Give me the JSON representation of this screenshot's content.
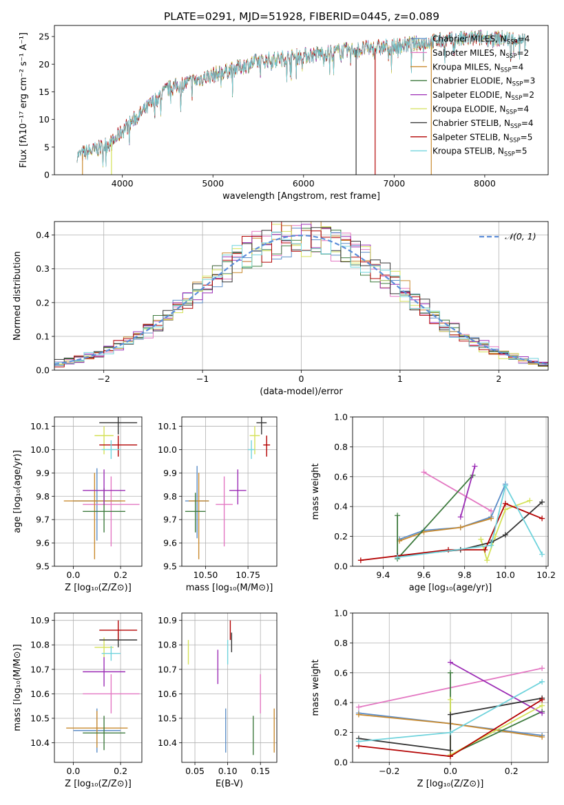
{
  "figure_title": "PLATE=0291, MJD=51928, FIBERID=0445, z=0.089",
  "models": [
    {
      "name": "Chabrier MILES, N",
      "nssp": "=4",
      "color": "#5b8cc7"
    },
    {
      "name": "Salpeter MILES, N",
      "nssp": "=2",
      "color": "#e377c2"
    },
    {
      "name": "Kroupa MILES, N",
      "nssp": "=4",
      "color": "#c98a2e"
    },
    {
      "name": "Chabrier ELODIE, N",
      "nssp": "=3",
      "color": "#3d7a3d"
    },
    {
      "name": "Salpeter ELODIE, N",
      "nssp": "=2",
      "color": "#9b2bb5"
    },
    {
      "name": "Kroupa ELODIE, N",
      "nssp": "=4",
      "color": "#d4e157"
    },
    {
      "name": "Chabrier STELIB, N",
      "nssp": "=4",
      "color": "#333333"
    },
    {
      "name": "Salpeter STELIB, N",
      "nssp": "=5",
      "color": "#b30000"
    },
    {
      "name": "Kroupa STELIB, N",
      "nssp": "=5",
      "color": "#6fd3dc"
    }
  ],
  "nssp_sub": "SSP",
  "chart_data": [
    {
      "id": "spectrum",
      "type": "line",
      "xlabel": "wavelength [Angstrom, rest frame]",
      "ylabel": "Flux [fλ10⁻¹⁷ erg cm⁻² s⁻¹ A⁻¹]",
      "xlim": [
        3250,
        8700
      ],
      "ylim": [
        0,
        27
      ],
      "xticks": [
        4000,
        5000,
        6000,
        7000,
        8000
      ],
      "yticks": [
        0,
        5,
        10,
        15,
        20,
        25
      ],
      "continuum_x": [
        3500,
        3700,
        3900,
        4000,
        4200,
        4500,
        5000,
        5500,
        6000,
        6500,
        7000,
        7500,
        8000,
        8300
      ],
      "continuum_y": [
        3.5,
        4.5,
        6,
        8,
        11,
        15.5,
        18,
        20.5,
        21.5,
        22.5,
        23.2,
        24.2,
        24.8,
        24.5
      ],
      "grid": false,
      "legend": "right"
    },
    {
      "id": "residuals",
      "type": "line",
      "xlabel": "(data-model)/error",
      "ylabel": "Normed distribution",
      "xlim": [
        -2.5,
        2.5
      ],
      "ylim": [
        0,
        0.44
      ],
      "xticks": [
        -2,
        -1,
        0,
        1,
        2
      ],
      "yticks": [
        0,
        0.1,
        0.2,
        0.3,
        0.4
      ],
      "gauss_label": "𝒩(0, 1)",
      "grid": true
    },
    {
      "id": "age_vs_Z",
      "type": "scatter",
      "xlabel": "Z [log₁₀(Z/Z⊙)]",
      "ylabel": "age  [log₁₀(age/yr)]",
      "xlim": [
        -0.08,
        0.29
      ],
      "ylim": [
        9.5,
        10.14
      ],
      "xticks": [
        0,
        0.2
      ],
      "xticklabels": [
        "0.0",
        "0.2"
      ],
      "yticks": [
        9.5,
        9.6,
        9.7,
        9.8,
        9.9,
        10.0,
        10.1
      ],
      "points": [
        {
          "x": 0.1,
          "y": 9.78,
          "ex": 0.1,
          "ey": [
            0.17,
            0.14
          ],
          "m": 0
        },
        {
          "x": 0.16,
          "y": 9.765,
          "ex": 0.12,
          "ey": [
            0.18,
            0.12
          ],
          "m": 1
        },
        {
          "x": 0.09,
          "y": 9.78,
          "ex": 0.13,
          "ey": [
            0.25,
            0.12
          ],
          "m": 2
        },
        {
          "x": 0.13,
          "y": 9.735,
          "ex": 0.09,
          "ey": [
            0.09,
            0.1
          ],
          "m": 3
        },
        {
          "x": 0.13,
          "y": 9.825,
          "ex": 0.09,
          "ey": [
            0.06,
            0.09
          ],
          "m": 4
        },
        {
          "x": 0.13,
          "y": 10.06,
          "ex": 0.04,
          "ey": [
            0.08,
            0.04
          ],
          "m": 5
        },
        {
          "x": 0.19,
          "y": 10.115,
          "ex": 0.08,
          "ey": [
            0.05,
            0.03
          ],
          "m": 6
        },
        {
          "x": 0.19,
          "y": 10.02,
          "ex": 0.08,
          "ey": [
            0.05,
            0.04
          ],
          "m": 7
        },
        {
          "x": 0.16,
          "y": 10.0,
          "ex": 0.04,
          "ey": [
            0.04,
            0.04
          ],
          "m": 8
        }
      ]
    },
    {
      "id": "age_vs_mass",
      "type": "scatter",
      "xlabel": "mass [log₁₀(M/M⊙)]",
      "ylabel": "",
      "xlim": [
        10.36,
        10.92
      ],
      "ylim": [
        9.5,
        10.14
      ],
      "xticks": [
        10.5,
        10.75
      ],
      "xticklabels": [
        "10.50",
        "10.75"
      ],
      "yticks": [
        9.5,
        9.6,
        9.7,
        9.8,
        9.9,
        10.0,
        10.1
      ],
      "points": [
        {
          "x": 10.45,
          "y": 9.78,
          "ex": 0.07,
          "ey": [
            0.16,
            0.15
          ],
          "m": 0
        },
        {
          "x": 10.61,
          "y": 9.765,
          "ex": 0.05,
          "ey": [
            0.18,
            0.12
          ],
          "m": 1
        },
        {
          "x": 10.46,
          "y": 9.78,
          "ex": 0.06,
          "ey": [
            0.25,
            0.12
          ],
          "m": 2
        },
        {
          "x": 10.44,
          "y": 9.735,
          "ex": 0.06,
          "ey": [
            0.09,
            0.08
          ],
          "m": 3
        },
        {
          "x": 10.69,
          "y": 9.825,
          "ex": 0.05,
          "ey": [
            0.06,
            0.09
          ],
          "m": 4
        },
        {
          "x": 10.79,
          "y": 10.06,
          "ex": 0.03,
          "ey": [
            0.08,
            0.04
          ],
          "m": 5
        },
        {
          "x": 10.83,
          "y": 10.115,
          "ex": 0.03,
          "ey": [
            0.05,
            0.03
          ],
          "m": 6
        },
        {
          "x": 10.86,
          "y": 10.02,
          "ex": 0.02,
          "ey": [
            0.05,
            0.04
          ],
          "m": 7
        },
        {
          "x": 10.77,
          "y": 10.0,
          "ex": 0.02,
          "ey": [
            0.04,
            0.04
          ],
          "m": 8
        }
      ]
    },
    {
      "id": "mw_vs_age",
      "type": "line",
      "xlabel": "age  [log₁₀(age/yr)]",
      "ylabel": "mass weight",
      "xlim": [
        9.25,
        10.21
      ],
      "ylim": [
        0,
        1.0
      ],
      "xticks": [
        9.4,
        9.6,
        9.8,
        10.0,
        10.2
      ],
      "xticklabels": [
        "9.4",
        "9.6",
        "9.8",
        "10.0",
        "10.2"
      ],
      "yticks": [
        0,
        0.2,
        0.4,
        0.6,
        0.8,
        1.0
      ],
      "grid": true,
      "series": [
        {
          "m": 0,
          "x": [
            9.48,
            9.6,
            9.78,
            9.93,
            10.0
          ],
          "y": [
            0.18,
            0.24,
            0.26,
            0.33,
            0.55
          ]
        },
        {
          "m": 1,
          "x": [
            9.6,
            9.93
          ],
          "y": [
            0.63,
            0.37
          ]
        },
        {
          "m": 2,
          "x": [
            9.48,
            9.6,
            9.78,
            9.93
          ],
          "y": [
            0.17,
            0.23,
            0.26,
            0.32
          ]
        },
        {
          "m": 3,
          "x": [
            9.47,
            9.47,
            9.84
          ],
          "y": [
            0.34,
            0.05,
            0.61
          ]
        },
        {
          "m": 4,
          "x": [
            9.78,
            9.85
          ],
          "y": [
            0.33,
            0.67
          ]
        },
        {
          "m": 5,
          "x": [
            9.88,
            9.91,
            9.95,
            10.0,
            10.12
          ],
          "y": [
            0.18,
            0.04,
            0.2,
            0.38,
            0.44
          ]
        },
        {
          "m": 6,
          "x": [
            9.47,
            9.78,
            9.93,
            10.0,
            10.18
          ],
          "y": [
            0.07,
            0.11,
            0.16,
            0.21,
            0.43
          ]
        },
        {
          "m": 7,
          "x": [
            9.29,
            9.72,
            9.9,
            10.0,
            10.18
          ],
          "y": [
            0.04,
            0.11,
            0.11,
            0.42,
            0.32
          ]
        },
        {
          "m": 8,
          "x": [
            9.47,
            9.93,
            10.0,
            10.18
          ],
          "y": [
            0.06,
            0.14,
            0.54,
            0.08
          ]
        }
      ]
    },
    {
      "id": "mass_vs_Z",
      "type": "scatter",
      "xlabel": "Z [log₁₀(Z/Z⊙)]",
      "ylabel": "mass [log₁₀(M/M⊙)]",
      "xlim": [
        -0.08,
        0.29
      ],
      "ylim": [
        10.32,
        10.93
      ],
      "xticks": [
        0,
        0.2
      ],
      "xticklabels": [
        "0.0",
        "0.2"
      ],
      "yticks": [
        10.4,
        10.5,
        10.6,
        10.7,
        10.8,
        10.9
      ],
      "points": [
        {
          "x": 0.1,
          "y": 10.45,
          "ex": 0.1,
          "ey": [
            0.09,
            0.09
          ],
          "m": 0
        },
        {
          "x": 0.16,
          "y": 10.6,
          "ex": 0.12,
          "ey": [
            0.08,
            0.08
          ],
          "m": 1
        },
        {
          "x": 0.1,
          "y": 10.46,
          "ex": 0.13,
          "ey": [
            0.08,
            0.07
          ],
          "m": 2
        },
        {
          "x": 0.13,
          "y": 10.44,
          "ex": 0.09,
          "ey": [
            0.07,
            0.07
          ],
          "m": 3
        },
        {
          "x": 0.13,
          "y": 10.69,
          "ex": 0.09,
          "ey": [
            0.06,
            0.06
          ],
          "m": 4
        },
        {
          "x": 0.13,
          "y": 10.79,
          "ex": 0.04,
          "ey": [
            0.04,
            0.04
          ],
          "m": 5
        },
        {
          "x": 0.19,
          "y": 10.82,
          "ex": 0.08,
          "ey": [
            0.03,
            0.03
          ],
          "m": 6
        },
        {
          "x": 0.19,
          "y": 10.86,
          "ex": 0.08,
          "ey": [
            0.04,
            0.04
          ],
          "m": 7
        },
        {
          "x": 0.16,
          "y": 10.765,
          "ex": 0.04,
          "ey": [
            0.03,
            0.03
          ],
          "m": 8
        }
      ]
    },
    {
      "id": "mass_vs_ebv",
      "type": "scatter",
      "xlabel": "E(B-V)",
      "ylabel": "",
      "xlim": [
        0.03,
        0.175
      ],
      "ylim": [
        10.32,
        10.93
      ],
      "xticks": [
        0.05,
        0.1,
        0.15
      ],
      "xticklabels": [
        "0.05",
        "0.10",
        "0.15"
      ],
      "yticks": [
        10.4,
        10.5,
        10.6,
        10.7,
        10.8,
        10.9
      ],
      "points": [
        {
          "x": 0.097,
          "y": 10.45,
          "ex": 0,
          "ey": [
            0.09,
            0.09
          ],
          "m": 0
        },
        {
          "x": 0.15,
          "y": 10.6,
          "ex": 0,
          "ey": [
            0.08,
            0.08
          ],
          "m": 1
        },
        {
          "x": 0.171,
          "y": 10.45,
          "ex": 0,
          "ey": [
            0.09,
            0.09
          ],
          "m": 2
        },
        {
          "x": 0.139,
          "y": 10.43,
          "ex": 0,
          "ey": [
            0.08,
            0.08
          ],
          "m": 3
        },
        {
          "x": 0.085,
          "y": 10.71,
          "ex": 0,
          "ey": [
            0.07,
            0.07
          ],
          "m": 4
        },
        {
          "x": 0.04,
          "y": 10.77,
          "ex": 0,
          "ey": [
            0.05,
            0.05
          ],
          "m": 5
        },
        {
          "x": 0.106,
          "y": 10.81,
          "ex": 0,
          "ey": [
            0.04,
            0.04
          ],
          "m": 6
        },
        {
          "x": 0.104,
          "y": 10.86,
          "ex": 0,
          "ey": [
            0.04,
            0.04
          ],
          "m": 7
        },
        {
          "x": 0.1,
          "y": 10.77,
          "ex": 0,
          "ey": [
            0.05,
            0.05
          ],
          "m": 8
        }
      ]
    },
    {
      "id": "mw_vs_Z",
      "type": "line",
      "xlabel": "Z [log₁₀(Z/Z⊙)]",
      "ylabel": "mass weight",
      "xlim": [
        -0.32,
        0.32
      ],
      "ylim": [
        0,
        1.0
      ],
      "xticks": [
        -0.2,
        0,
        0.2
      ],
      "xticklabels": [
        "−0.2",
        "0.0",
        "0.2"
      ],
      "yticks": [
        0,
        0.2,
        0.4,
        0.6,
        0.8,
        1.0
      ],
      "grid": true,
      "series": [
        {
          "m": 0,
          "x": [
            -0.3,
            0.0,
            0.3
          ],
          "y": [
            0.33,
            0.26,
            0.18
          ]
        },
        {
          "m": 1,
          "x": [
            -0.3,
            0.3
          ],
          "y": [
            0.37,
            0.63
          ]
        },
        {
          "m": 2,
          "x": [
            -0.3,
            0.0,
            0.3
          ],
          "y": [
            0.32,
            0.26,
            0.17
          ]
        },
        {
          "m": 3,
          "x": [
            0.0,
            0.0,
            0.3
          ],
          "y": [
            0.6,
            0.05,
            0.34
          ]
        },
        {
          "m": 4,
          "x": [
            0.0,
            0.3
          ],
          "y": [
            0.67,
            0.33
          ]
        },
        {
          "m": 5,
          "x": [
            0.0,
            0.0,
            0.3
          ],
          "y": [
            0.42,
            0.05,
            0.38
          ]
        },
        {
          "m": 6,
          "x": [
            -0.3,
            0.0,
            0.0,
            0.3
          ],
          "y": [
            0.16,
            0.08,
            0.32,
            0.43
          ]
        },
        {
          "m": 7,
          "x": [
            -0.3,
            0.0,
            0.3
          ],
          "y": [
            0.11,
            0.04,
            0.42
          ]
        },
        {
          "m": 8,
          "x": [
            -0.3,
            0.0,
            0.3
          ],
          "y": [
            0.14,
            0.2,
            0.54
          ]
        }
      ]
    }
  ]
}
